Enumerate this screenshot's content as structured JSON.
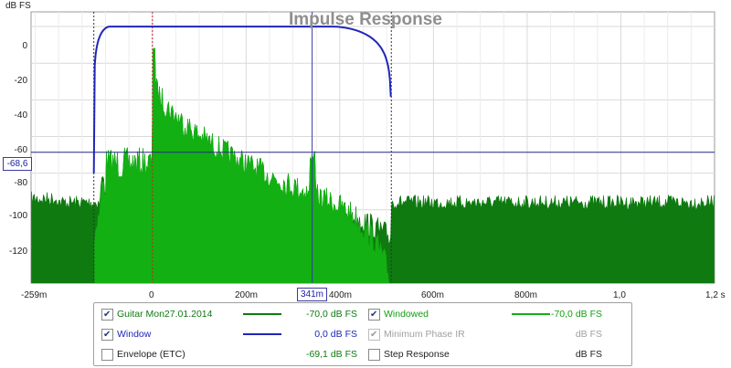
{
  "title": "Impulse Response",
  "y_unit": "dB FS",
  "y_cursor_value": "-68,6",
  "x_cursor_value": "341m",
  "colors": {
    "raw": "#0e7a10",
    "windowed": "#12b012",
    "window": "#1f26b8",
    "grid": "#d9d9d9",
    "marker_red": "#d22020"
  },
  "chart_data": {
    "type": "area",
    "title": "Impulse Response",
    "ylabel": "dB FS",
    "xlabel": "",
    "y_ticks": [
      "0",
      "-20",
      "-40",
      "-60",
      "-80",
      "-100",
      "-120"
    ],
    "x_ticks": [
      "-259m",
      "0",
      "200m",
      "400m",
      "600m",
      "800m",
      "1,0",
      "1,2 s"
    ],
    "xlim": [
      -0.259,
      1.2
    ],
    "ylim": [
      -140,
      8
    ],
    "markers": {
      "window_left_s": -0.125,
      "peak_s": 0.0,
      "window_right_s": 0.51,
      "cursor_x_s": 0.341,
      "cursor_y_db": -68.6
    },
    "series": [
      {
        "name": "Guitar Mon27.01.2014",
        "kind": "impulse",
        "noise_floor_db": -92,
        "peak_db": 0,
        "decay_end_s": 0.51,
        "reflection_s": 0.341,
        "reflection_db": -68
      },
      {
        "name": "Windowed",
        "kind": "impulse-windowed",
        "window_start_s": -0.125,
        "window_end_s": 0.51
      },
      {
        "name": "Window",
        "kind": "window",
        "flat_db": 0,
        "start_s": -0.125,
        "flat_start_s": -0.09,
        "flat_end_s": 0.38,
        "end_s": 0.51
      }
    ]
  },
  "legend": {
    "rows": [
      {
        "left_label": "Guitar Mon27.01.2014",
        "left_value": "-70,0 dB FS",
        "right_label": "Windowed",
        "right_value": "-70,0 dB FS"
      },
      {
        "left_label": "Window",
        "left_value": "0,0 dB FS",
        "right_label": "Minimum Phase IR",
        "right_value": "dB FS"
      },
      {
        "left_label": "Envelope (ETC)",
        "left_value": "-69,1 dB FS",
        "right_label": "Step Response",
        "right_value": "dB FS"
      }
    ]
  }
}
